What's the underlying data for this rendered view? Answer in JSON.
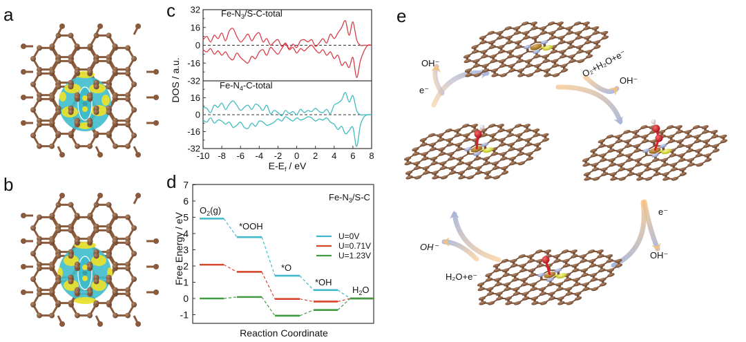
{
  "panels": {
    "a": {
      "letter": "a",
      "description": "Charge density difference isosurface, Fe-N3/S-C on graphene lattice"
    },
    "b": {
      "letter": "b",
      "description": "Charge density difference isosurface, Fe-N4-C on graphene lattice"
    },
    "c": {
      "letter": "c"
    },
    "d": {
      "letter": "d"
    },
    "e": {
      "letter": "e",
      "labels": {
        "oh_top_left": "OH⁻",
        "e_left": "e⁻",
        "o2_h2o_e": "O₂+H₂O+e⁻",
        "oh_top_right": "OH⁻",
        "e_right": "e⁻",
        "oh_bottom_right": "OH⁻",
        "oh_bottom_left": "OH⁻",
        "h2o_e": "H₂O+e⁻"
      }
    }
  },
  "colors": {
    "carbon": "#8a5a3c",
    "nitrogen": "#9aa6d0",
    "iron": "#b8862a",
    "sulfur": "#e4e63a",
    "oxygen": "#d8202c",
    "hydrogen": "#e8e0e0",
    "iso_cyan": "#3fbccc",
    "iso_yellow": "#e8e030",
    "dos_red": "#d93b45",
    "dos_cyan": "#3fbcbf",
    "u0": "#40b8cc",
    "u071": "#d9452a",
    "u123": "#3f9a40",
    "arrow_blue": "#a8b4d8",
    "arrow_orange": "#f3c183"
  },
  "chart_data": [
    {
      "type": "line",
      "panel": "c",
      "title": "",
      "xlabel": "E-Ef / eV",
      "ylabel": "DOS / a.u.",
      "xlim": [
        -10,
        8
      ],
      "xticks": [
        -10,
        -8,
        -6,
        -4,
        -2,
        0,
        2,
        4,
        6,
        8
      ],
      "subplots": [
        {
          "label": "Fe-N3/S-C-total",
          "ylim": [
            -32,
            32
          ],
          "yticks": [
            32,
            16,
            0,
            -16,
            -32
          ],
          "color": "#d93b45",
          "series": [
            {
              "name": "spin-up",
              "x": [
                -10,
                -9.6,
                -9.2,
                -8.8,
                -8.4,
                -8,
                -7.6,
                -7.2,
                -6.8,
                -6.4,
                -6,
                -5.6,
                -5.2,
                -4.8,
                -4.4,
                -4,
                -3.6,
                -3.2,
                -2.8,
                -2.4,
                -2,
                -1.6,
                -1.2,
                -0.8,
                -0.4,
                0,
                0.4,
                0.8,
                1.2,
                1.6,
                2,
                2.4,
                2.8,
                3.2,
                3.6,
                4,
                4.4,
                4.8,
                5.2,
                5.6,
                6,
                6.4,
                6.8,
                7.2,
                7.6,
                8
              ],
              "y": [
                5,
                8,
                3,
                9,
                6,
                11,
                4,
                13,
                15,
                8,
                3,
                6,
                10,
                4,
                9,
                11,
                3,
                6,
                0,
                3,
                5,
                -1,
                2,
                -3,
                1,
                -2,
                4,
                5,
                3,
                5,
                -1,
                2,
                6,
                2,
                10,
                6,
                11,
                16,
                22,
                9,
                21,
                5,
                0,
                0,
                0,
                0
              ]
            },
            {
              "name": "spin-down",
              "x": [
                -10,
                -9.6,
                -9.2,
                -8.8,
                -8.4,
                -8,
                -7.6,
                -7.2,
                -6.8,
                -6.4,
                -6,
                -5.6,
                -5.2,
                -4.8,
                -4.4,
                -4,
                -3.6,
                -3.2,
                -2.8,
                -2.4,
                -2,
                -1.6,
                -1.2,
                -0.8,
                -0.4,
                0,
                0.4,
                0.8,
                1.2,
                1.6,
                2,
                2.4,
                2.8,
                3.2,
                3.6,
                4,
                4.4,
                4.8,
                5.2,
                5.6,
                6,
                6.4,
                6.8,
                7.2,
                7.6,
                8
              ],
              "y": [
                -4,
                -6,
                -3,
                -8,
                -5,
                -9,
                -6,
                -11,
                -13,
                -7,
                -11,
                -14,
                -16,
                -10,
                -12,
                -6,
                -4,
                -9,
                -2,
                -5,
                -8,
                -3,
                1,
                -4,
                -2,
                -7,
                -3,
                -5,
                -2,
                0,
                -4,
                -7,
                -4,
                -9,
                -6,
                -12,
                -9,
                -18,
                -15,
                -20,
                -11,
                -29,
                -14,
                -5,
                0,
                0
              ]
            }
          ]
        },
        {
          "label": "Fe-N4-C-total",
          "ylim": [
            -32,
            32
          ],
          "yticks": [
            16,
            0,
            -16,
            -32
          ],
          "color": "#3fbcbf",
          "series": [
            {
              "name": "spin-up",
              "x": [
                -10,
                -9.6,
                -9.2,
                -8.8,
                -8.4,
                -8,
                -7.6,
                -7.2,
                -6.8,
                -6.4,
                -6,
                -5.6,
                -5.2,
                -4.8,
                -4.4,
                -4,
                -3.6,
                -3.2,
                -2.8,
                -2.4,
                -2,
                -1.6,
                -1.2,
                -0.8,
                -0.4,
                0,
                0.4,
                0.8,
                1.2,
                1.6,
                2,
                2.4,
                2.8,
                3.2,
                3.6,
                4,
                4.4,
                4.8,
                5.2,
                5.6,
                6,
                6.4,
                6.8,
                7.2,
                7.6,
                8
              ],
              "y": [
                7,
                6,
                2,
                9,
                7,
                11,
                5,
                10,
                13,
                9,
                4,
                7,
                9,
                5,
                10,
                8,
                4,
                9,
                1,
                4,
                2,
                -1,
                4,
                1,
                3,
                0,
                5,
                2,
                4,
                3,
                6,
                3,
                2,
                5,
                1,
                9,
                11,
                14,
                21,
                12,
                18,
                4,
                0,
                0,
                0,
                0
              ]
            },
            {
              "name": "spin-down",
              "x": [
                -10,
                -9.6,
                -9.2,
                -8.8,
                -8.4,
                -8,
                -7.6,
                -7.2,
                -6.8,
                -6.4,
                -6,
                -5.6,
                -5.2,
                -4.8,
                -4.4,
                -4,
                -3.6,
                -3.2,
                -2.8,
                -2.4,
                -2,
                -1.6,
                -1.2,
                -0.8,
                -0.4,
                0,
                0.4,
                0.8,
                1.2,
                1.6,
                2,
                2.4,
                2.8,
                3.2,
                3.6,
                4,
                4.4,
                4.8,
                5.2,
                5.6,
                6,
                6.4,
                6.8,
                7.2,
                7.6,
                8
              ],
              "y": [
                -5,
                -7,
                -3,
                -8,
                -5,
                -6,
                -9,
                -7,
                -12,
                -10,
                -7,
                -12,
                -13,
                -8,
                -11,
                -6,
                -7,
                -10,
                -9,
                -7,
                -4,
                -6,
                -2,
                -4,
                -6,
                -3,
                -5,
                -4,
                -2,
                -3,
                -6,
                -4,
                -5,
                -3,
                -7,
                -9,
                -14,
                -11,
                -18,
                -15,
                -12,
                -30,
                -10,
                -2,
                0,
                0
              ]
            }
          ]
        }
      ],
      "zero_line": "dashed"
    },
    {
      "type": "line",
      "subtype": "free-energy-diagram",
      "panel": "d",
      "title": "Fe-N3/S-C",
      "xlabel": "Reaction Coordinate",
      "ylabel": "Free Energy / eV",
      "ylim": [
        -1.5,
        7
      ],
      "yticks": [
        7,
        6,
        5,
        4,
        3,
        2,
        1,
        0,
        -1
      ],
      "categories": [
        "O2(g)",
        "*OOH",
        "*O",
        "*OH",
        "H2O"
      ],
      "category_labels": {
        "o2": "O₂(g)",
        "ooh": "*OOH",
        "o": "*O",
        "oh": "*OH",
        "h2o": "H₂O"
      },
      "legend_position": "upper right",
      "series": [
        {
          "name": "U=0V",
          "color": "#40b8cc",
          "values": [
            4.92,
            3.78,
            1.4,
            0.52,
            0.0
          ]
        },
        {
          "name": "U=0.71V",
          "color": "#d9452a",
          "values": [
            2.08,
            1.64,
            -0.03,
            -0.19,
            0.0
          ]
        },
        {
          "name": "U=1.23V",
          "color": "#3f9a40",
          "values": [
            0.0,
            0.09,
            -1.06,
            -0.71,
            0.0
          ]
        }
      ]
    }
  ]
}
